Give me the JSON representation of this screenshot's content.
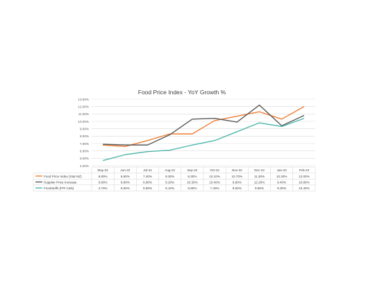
{
  "chart_data": {
    "type": "line",
    "title": "Food Price Index - YoY Growth %",
    "categories": [
      "May-22",
      "Jun-22",
      "Jul-22",
      "Aug-22",
      "Sep-22",
      "Oct-22",
      "Nov-22",
      "Dec-22",
      "Jan-23",
      "Feb-23"
    ],
    "y_ticks": [
      "13.00%",
      "12.00%",
      "11.00%",
      "10.00%",
      "9.00%",
      "8.00%",
      "7.00%",
      "6.00%",
      "5.00%",
      "4.00%"
    ],
    "ylim": [
      4,
      13
    ],
    "grid": true,
    "legend": "data-table",
    "series": [
      {
        "name": "Food Price Index (Stat NZ)",
        "color": "#ED7D31",
        "values": [
          6.8,
          6.6,
          7.4,
          8.3,
          8.3,
          10.1,
          10.7,
          11.3,
          10.3,
          12.0
        ],
        "labels": [
          "6.80%",
          "6.60%",
          "7.40%",
          "8.30%",
          "8.30%",
          "10.10%",
          "10.70%",
          "11.30%",
          "10.30%",
          "12.00%"
        ]
      },
      {
        "name": "Supplier Price Increase",
        "color": "#595959",
        "values": [
          6.9,
          6.8,
          6.8,
          8.2,
          10.3,
          10.4,
          9.9,
          12.2,
          9.4,
          10.8
        ],
        "labels": [
          "6.90%",
          "6.80%",
          "6.80%",
          "8.20%",
          "10.30%",
          "10.40%",
          "9.90%",
          "12.20%",
          "9.40%",
          "10.80%"
        ]
      },
      {
        "name": "Foodstuffs (FPI Cals)",
        "color": "#4DB6AC",
        "values": [
          4.7,
          5.5,
          5.9,
          6.1,
          6.8,
          7.4,
          8.6,
          9.8,
          9.3,
          10.4
        ],
        "labels": [
          "4.70%",
          "5.50%",
          "5.90%",
          "6.10%",
          "6.80%",
          "7.40%",
          "8.60%",
          "9.80%",
          "9.30%",
          "10.40%"
        ]
      }
    ]
  }
}
